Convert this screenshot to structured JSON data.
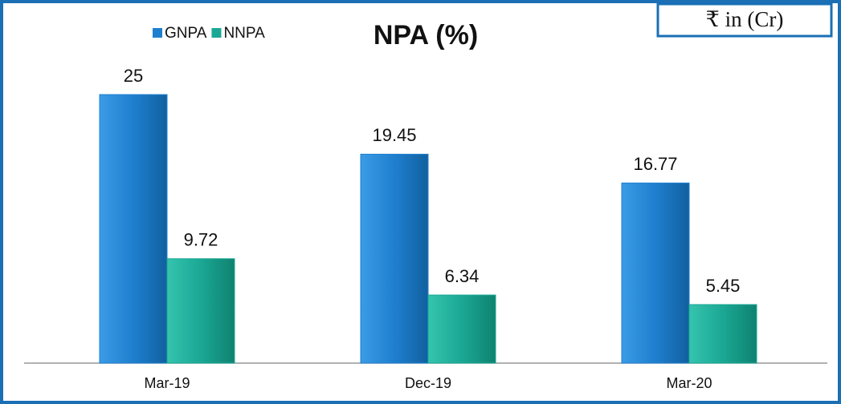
{
  "chart_data": {
    "type": "bar",
    "title": "NPA (%)",
    "annotation": "₹ in (Cr)",
    "categories": [
      "Mar-19",
      "Dec-19",
      "Mar-20"
    ],
    "series": [
      {
        "name": "GNPA",
        "color": "#1f7fcf",
        "values": [
          25,
          19.45,
          16.77
        ]
      },
      {
        "name": "NNPA",
        "color": "#1aa894",
        "values": [
          9.72,
          6.34,
          5.45
        ]
      }
    ],
    "legend": "top-left"
  }
}
